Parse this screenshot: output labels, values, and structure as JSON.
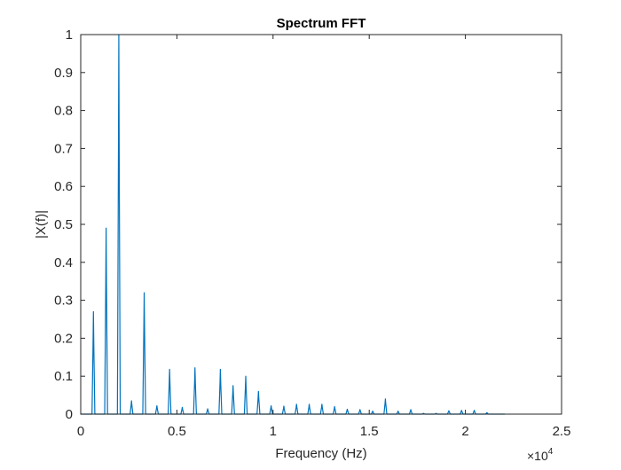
{
  "figure": {
    "title": "Spectrum FFT",
    "xlabel": "Frequency (Hz)",
    "ylabel": "|X(f)|",
    "x_exponent_base": "×10",
    "x_exponent_power": "4",
    "line_color": "#0072bd"
  },
  "chart_data": {
    "type": "line",
    "title": "Spectrum FFT",
    "xlabel": "Frequency (Hz)",
    "ylabel": "|X(f)|",
    "xlim": [
      0,
      25000
    ],
    "ylim": [
      0,
      1
    ],
    "x_scale_note": "x10^4",
    "xticks": [
      0,
      5000,
      10000,
      15000,
      20000,
      25000
    ],
    "xtick_labels": [
      "0",
      "0.5",
      "1",
      "1.5",
      "2",
      "2.5"
    ],
    "yticks": [
      0,
      0.1,
      0.2,
      0.3,
      0.4,
      0.5,
      0.6,
      0.7,
      0.8,
      0.9,
      1
    ],
    "ytick_labels": [
      "0",
      "0.1",
      "0.2",
      "0.3",
      "0.4",
      "0.5",
      "0.6",
      "0.7",
      "0.8",
      "0.9",
      "1"
    ],
    "grid": false,
    "legend": null,
    "data_extent_hz": 22050,
    "series": [
      {
        "name": "|X(f)|",
        "peaks": [
          {
            "f": 660,
            "mag": 0.27
          },
          {
            "f": 1320,
            "mag": 0.49
          },
          {
            "f": 1980,
            "mag": 1.0
          },
          {
            "f": 2640,
            "mag": 0.035
          },
          {
            "f": 3300,
            "mag": 0.32
          },
          {
            "f": 3960,
            "mag": 0.022
          },
          {
            "f": 4620,
            "mag": 0.118
          },
          {
            "f": 5280,
            "mag": 0.018
          },
          {
            "f": 5940,
            "mag": 0.122
          },
          {
            "f": 6600,
            "mag": 0.014
          },
          {
            "f": 7260,
            "mag": 0.118
          },
          {
            "f": 7920,
            "mag": 0.075
          },
          {
            "f": 8580,
            "mag": 0.1
          },
          {
            "f": 9240,
            "mag": 0.06
          },
          {
            "f": 9900,
            "mag": 0.022
          },
          {
            "f": 10560,
            "mag": 0.021
          },
          {
            "f": 11220,
            "mag": 0.026
          },
          {
            "f": 11880,
            "mag": 0.026
          },
          {
            "f": 12540,
            "mag": 0.026
          },
          {
            "f": 13200,
            "mag": 0.02
          },
          {
            "f": 13860,
            "mag": 0.013
          },
          {
            "f": 14520,
            "mag": 0.012
          },
          {
            "f": 15180,
            "mag": 0.008
          },
          {
            "f": 15840,
            "mag": 0.04
          },
          {
            "f": 16500,
            "mag": 0.008
          },
          {
            "f": 17160,
            "mag": 0.012
          },
          {
            "f": 17820,
            "mag": 0.002
          },
          {
            "f": 18480,
            "mag": 0.002
          },
          {
            "f": 19140,
            "mag": 0.009
          },
          {
            "f": 19800,
            "mag": 0.01
          },
          {
            "f": 20460,
            "mag": 0.01
          },
          {
            "f": 21120,
            "mag": 0.004
          }
        ]
      }
    ]
  }
}
